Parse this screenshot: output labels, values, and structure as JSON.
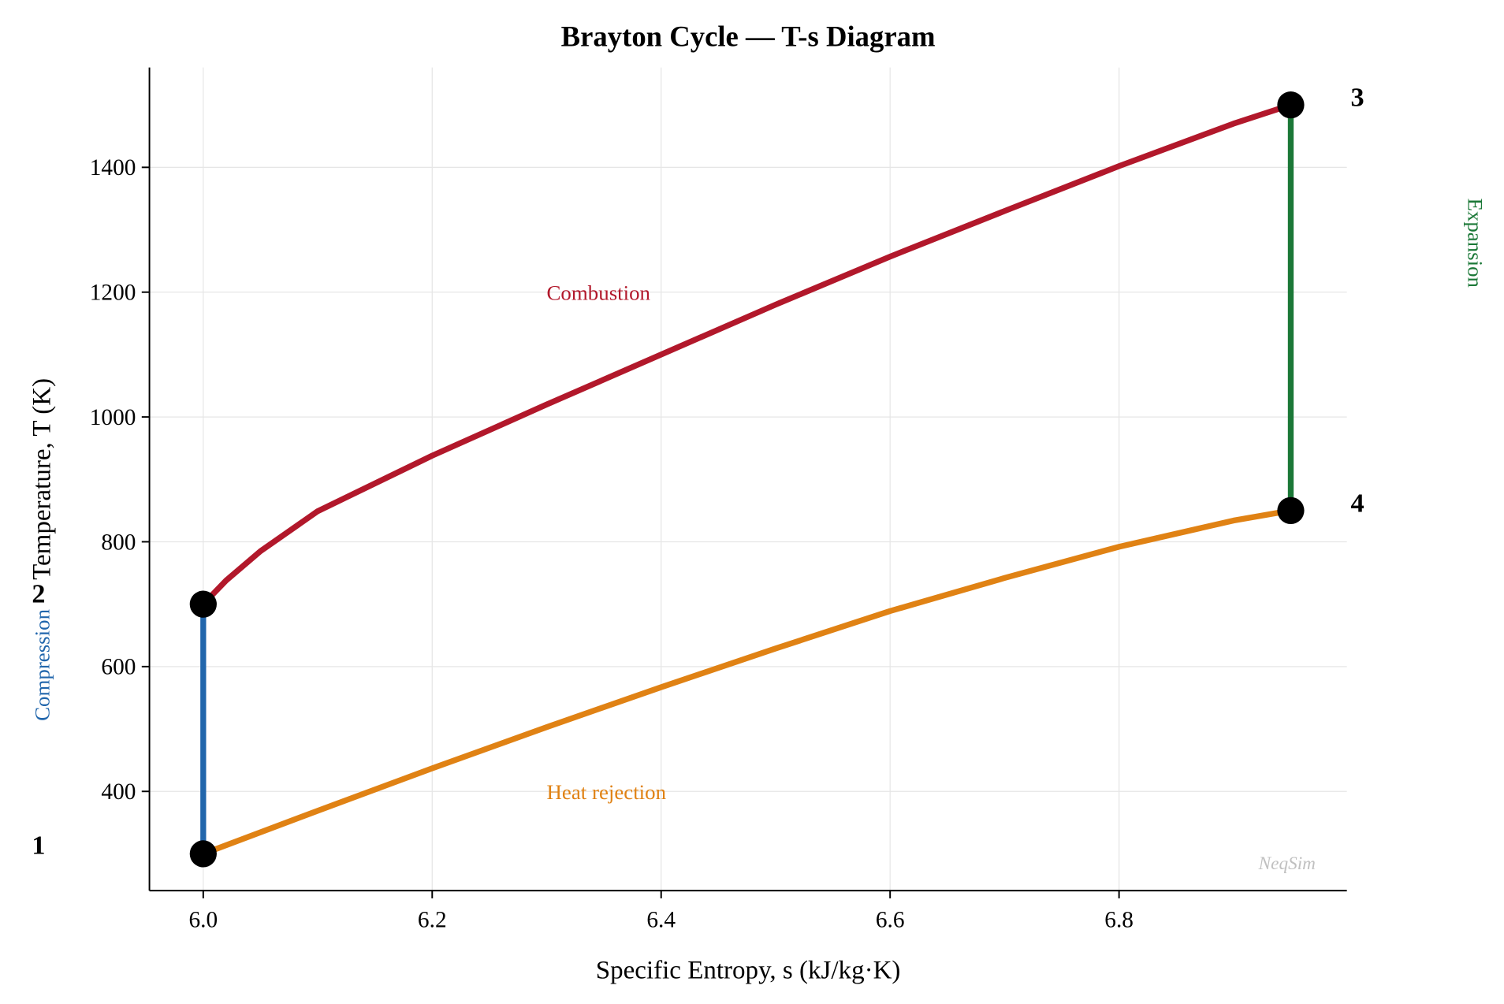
{
  "chart_data": {
    "type": "line",
    "title": "Brayton Cycle — T-s Diagram",
    "xlabel": "Specific Entropy, s (kJ/kg·K)",
    "ylabel": "Temperature, T (K)",
    "xlim": [
      5.953,
      6.999
    ],
    "ylim": [
      241,
      1560
    ],
    "xticks": [
      "6.0",
      "6.2",
      "6.4",
      "6.6",
      "6.8"
    ],
    "yticks": [
      "400",
      "600",
      "800",
      "1000",
      "1200",
      "1400"
    ],
    "grid": true,
    "watermark": "NeqSim",
    "series": [
      {
        "name": "Compression",
        "color": "#2166ac",
        "x": [
          6.0,
          6.0
        ],
        "y": [
          300,
          700
        ]
      },
      {
        "name": "Combustion",
        "color": "#b2182b",
        "x": [
          6.0,
          6.02,
          6.05,
          6.1,
          6.2,
          6.3,
          6.4,
          6.5,
          6.6,
          6.7,
          6.8,
          6.9,
          6.95
        ],
        "y": [
          700,
          738,
          785,
          849,
          938,
          1020,
          1100,
          1180,
          1257,
          1330,
          1402,
          1470,
          1500
        ]
      },
      {
        "name": "Expansion",
        "color": "#1b7837",
        "x": [
          6.95,
          6.95
        ],
        "y": [
          1500,
          850
        ]
      },
      {
        "name": "Heat rejection",
        "color": "#e08214",
        "x": [
          6.0,
          6.1,
          6.2,
          6.3,
          6.4,
          6.5,
          6.6,
          6.7,
          6.8,
          6.9,
          6.95
        ],
        "y": [
          300,
          369,
          437,
          503,
          567,
          629,
          689,
          742,
          792,
          834,
          850
        ]
      }
    ],
    "states": [
      {
        "label": "1",
        "s": 6.0,
        "T": 300
      },
      {
        "label": "2",
        "s": 6.0,
        "T": 700
      },
      {
        "label": "3",
        "s": 6.95,
        "T": 1500
      },
      {
        "label": "4",
        "s": 6.95,
        "T": 850
      }
    ],
    "annotations": [
      {
        "text": "Combustion",
        "s": 6.3,
        "T": 1200,
        "color": "#b2182b"
      },
      {
        "text": "Heat rejection",
        "s": 6.3,
        "T": 400,
        "color": "#e08214"
      },
      {
        "text": "Compression",
        "color": "#2166ac"
      },
      {
        "text": "Expansion",
        "color": "#1b7837"
      }
    ]
  }
}
